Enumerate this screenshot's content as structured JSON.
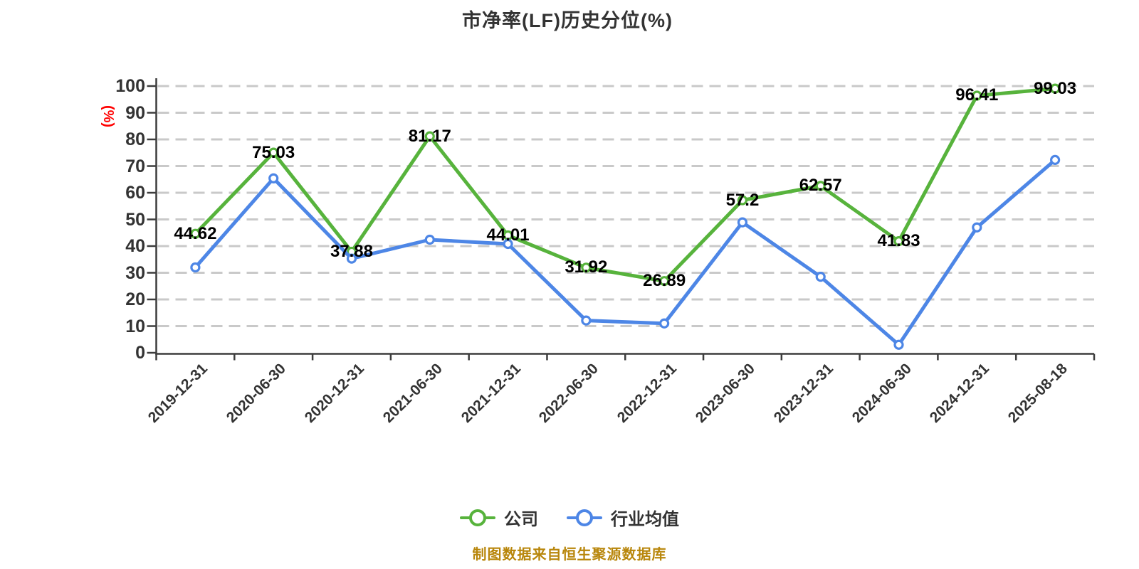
{
  "title": "市净率(LF)历史分位(%)",
  "y_axis_unit": "(%)",
  "footer": "制图数据来自恒生聚源数据库",
  "colors": {
    "company": "#57b33c",
    "industry": "#4d86e6",
    "grid": "#c9c9c9",
    "axis": "#3d3d3d",
    "tick_text": "#333333",
    "value_label": "#000000",
    "y_unit_text": "#ff0000",
    "footer_text": "#b8860b"
  },
  "legend": {
    "items": [
      {
        "label": "公司",
        "series": "company"
      },
      {
        "label": "行业均值",
        "series": "industry"
      }
    ]
  },
  "chart_data": {
    "type": "line",
    "title": "市净率(LF)历史分位(%)",
    "ylabel": "(%)",
    "ylim": [
      0,
      100
    ],
    "y_tick_step": 10,
    "grid": "horizontal-dashed",
    "legend_position": "bottom",
    "x_label_rotate_deg": 45,
    "categories": [
      "2019-12-31",
      "2020-06-30",
      "2020-12-31",
      "2021-06-30",
      "2021-12-31",
      "2022-06-30",
      "2022-12-31",
      "2023-06-30",
      "2023-12-31",
      "2024-06-30",
      "2024-12-31",
      "2025-08-18"
    ],
    "series": [
      {
        "name": "公司",
        "color_key": "company",
        "show_labels": true,
        "values": [
          44.62,
          75.03,
          37.88,
          81.17,
          44.01,
          31.92,
          26.89,
          57.2,
          62.57,
          41.83,
          96.41,
          99.03
        ]
      },
      {
        "name": "行业均值",
        "color_key": "industry",
        "show_labels": false,
        "values": [
          32,
          65.4,
          35.3,
          42.4,
          40.8,
          12.1,
          11,
          48.9,
          28.5,
          3,
          47,
          72.3
        ]
      }
    ]
  }
}
